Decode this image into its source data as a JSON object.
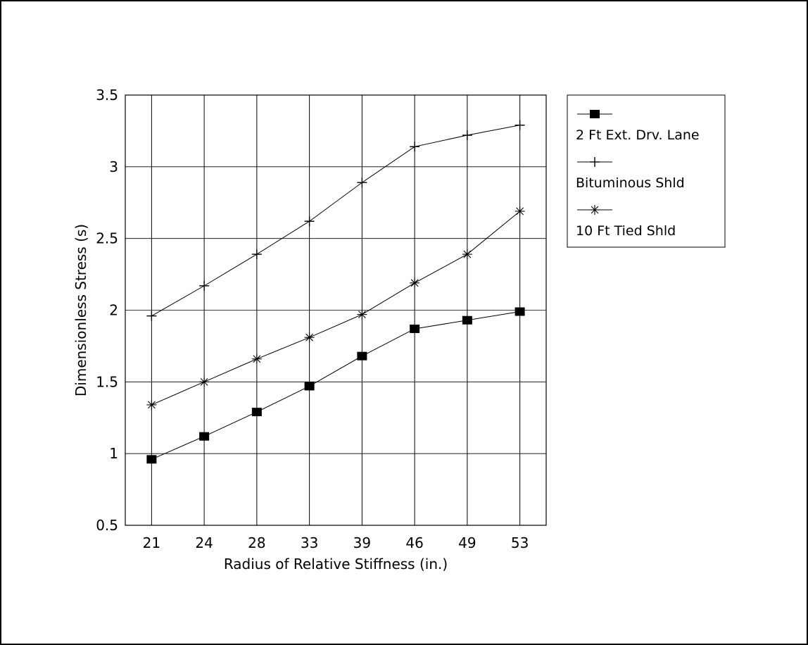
{
  "chart_data": {
    "type": "line",
    "xlabel": "Radius of Relative Stiffness (in.)",
    "ylabel": "Dimensionless Stress (s)",
    "categories": [
      "21",
      "24",
      "28",
      "33",
      "39",
      "46",
      "49",
      "53"
    ],
    "ylim": [
      0.5,
      3.5
    ],
    "yticks": [
      "0.5",
      "1",
      "1.5",
      "2",
      "2.5",
      "3",
      "3.5"
    ],
    "grid": true,
    "legend_position": "right",
    "series": [
      {
        "name": "2 Ft Ext. Drv. Lane",
        "marker": "square",
        "values": [
          0.96,
          1.12,
          1.29,
          1.47,
          1.68,
          1.87,
          1.93,
          1.99
        ]
      },
      {
        "name": "Bituminous Shld",
        "marker": "plus",
        "values": [
          1.96,
          2.17,
          2.39,
          2.62,
          2.89,
          3.14,
          3.22,
          3.29
        ]
      },
      {
        "name": "10 Ft Tied Shld",
        "marker": "star",
        "values": [
          1.34,
          1.5,
          1.66,
          1.81,
          1.97,
          2.19,
          2.39,
          2.69
        ]
      }
    ]
  }
}
